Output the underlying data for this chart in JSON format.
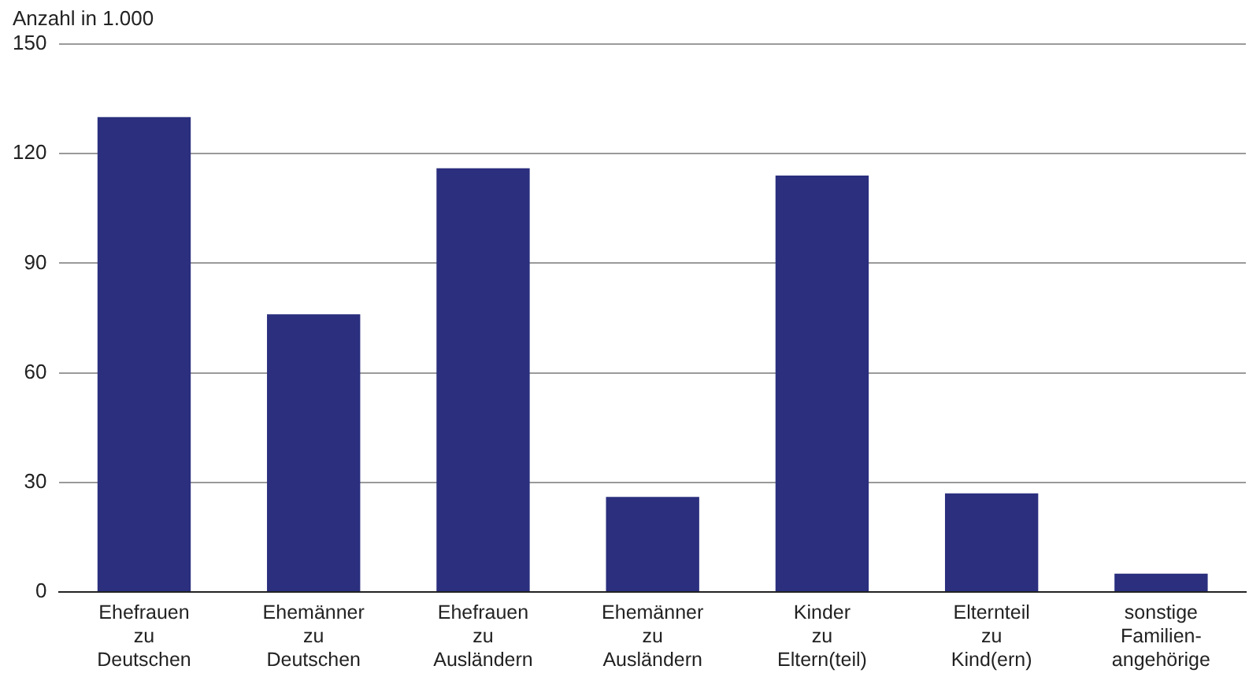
{
  "chart_data": {
    "type": "bar",
    "ylabel": "Anzahl in 1.000",
    "categories": [
      "Ehefrauen\nzu\nDeutschen",
      "Ehemänner\nzu\nDeutschen",
      "Ehefrauen\nzu\nAusländern",
      "Ehemänner\nzu\nAusländern",
      "Kinder\nzu\nEltern(teil)",
      "Elternteil\nzu\nKind(ern)",
      "sonstige\nFamilien-\nangehörige"
    ],
    "values": [
      130,
      76,
      116,
      26,
      114,
      27,
      5
    ],
    "color": "#2b2f7e",
    "ylim": [
      0,
      150
    ],
    "yticks": [
      0,
      30,
      60,
      90,
      120,
      150
    ],
    "grid": "y"
  }
}
